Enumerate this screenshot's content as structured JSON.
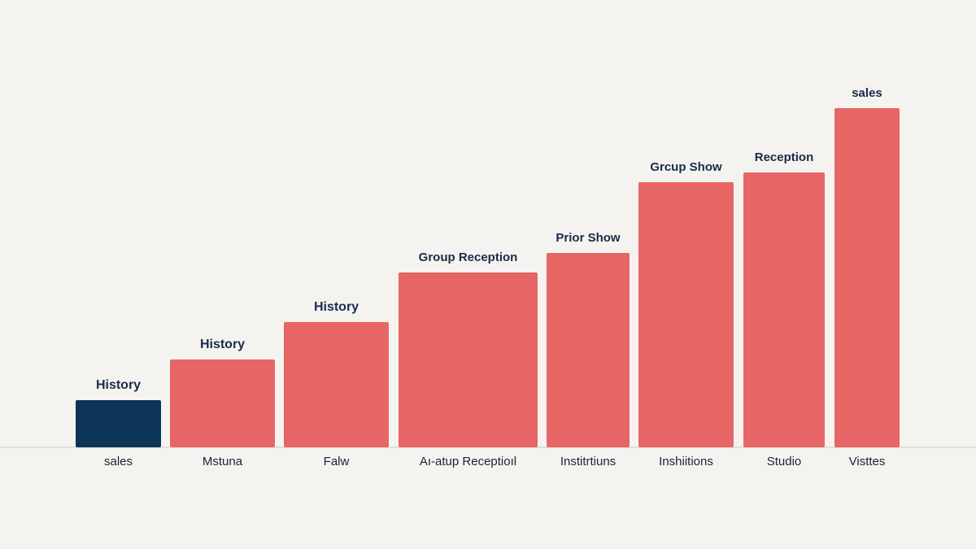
{
  "chart_data": {
    "type": "bar",
    "categories": [
      "sales",
      "Mstuna",
      "Falw",
      "Aı-atup Receptioıl",
      "Institrtiuns",
      "Inshiitions",
      "Studio",
      "Visttes"
    ],
    "bar_labels": [
      "History",
      "History",
      "History",
      "Group Reception",
      "Prior Show",
      "Grcup Show",
      "Reception",
      "sales"
    ],
    "values": [
      58,
      108,
      154,
      215,
      239,
      326,
      338,
      417
    ],
    "ylim": [
      0,
      440
    ],
    "grid": false,
    "colors": {
      "bars": [
        "#0d3557",
        "#e86566",
        "#e86566",
        "#e86566",
        "#e86566",
        "#e86566",
        "#e86566",
        "#e86566"
      ],
      "baseline": "#dcd8d2",
      "background": "#f5f3ef"
    }
  }
}
